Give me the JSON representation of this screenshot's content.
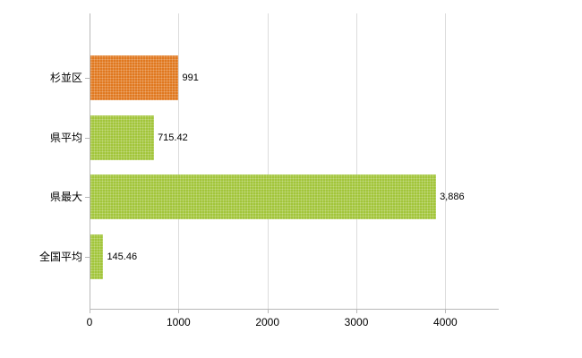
{
  "chart_data": {
    "type": "bar",
    "orientation": "horizontal",
    "title": "",
    "xlabel": "",
    "ylabel": "",
    "categories": [
      "杉並区",
      "県平均",
      "県最大",
      "全国平均"
    ],
    "values": [
      991,
      715.42,
      3886,
      145.46
    ],
    "value_labels": [
      "991",
      "715.42",
      "3,886",
      "145.46"
    ],
    "series": [
      {
        "name": "値",
        "values": [
          991,
          715.42,
          3886,
          145.46
        ]
      }
    ],
    "bar_colors": [
      "#e0781f",
      "#a2c53a",
      "#a2c53a",
      "#a2c53a"
    ],
    "xlim": [
      0,
      4600
    ],
    "x_ticks": [
      0,
      1000,
      2000,
      3000,
      4000
    ],
    "x_tick_labels": [
      "0",
      "1000",
      "2000",
      "3000",
      "4000"
    ],
    "grid": true,
    "legend": "none",
    "background_color": "#ffffff",
    "axis_color": "#b8b8b8",
    "gridline_color": "#dcdcdc",
    "highlight_color": "#e0781f",
    "default_bar_color": "#a2c53a"
  }
}
